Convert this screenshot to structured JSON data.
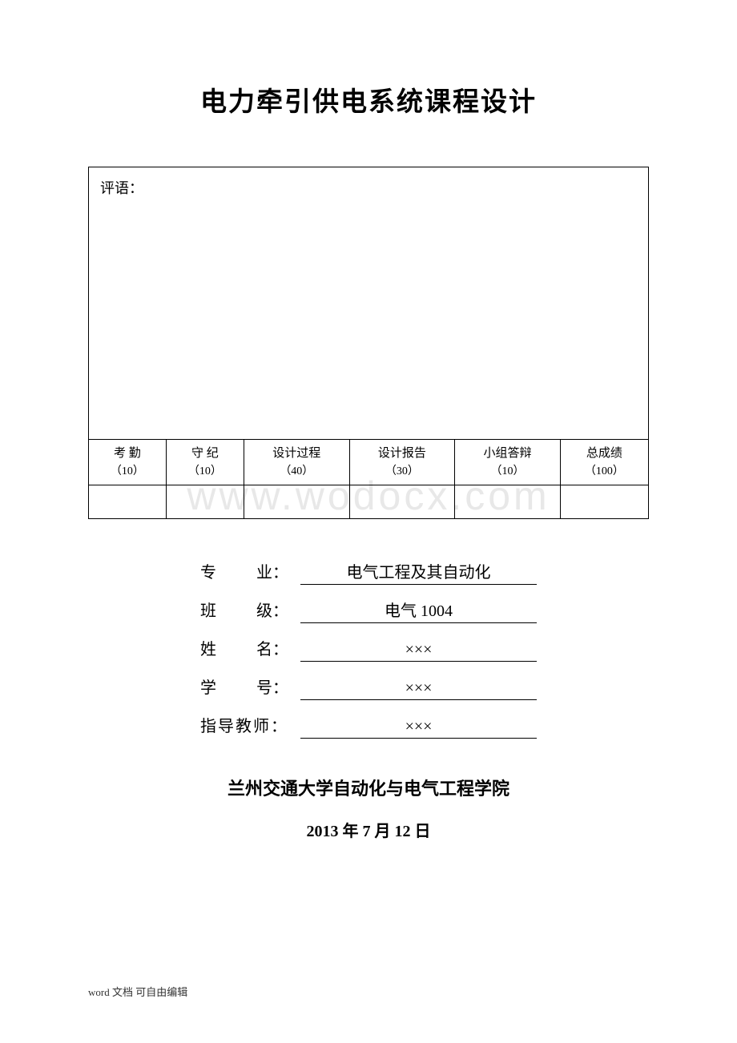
{
  "title": "电力牵引供电系统课程设计",
  "comment_label": "评语：",
  "score_columns": [
    {
      "main": "考 勤",
      "sub": "（10）"
    },
    {
      "main": "守 纪",
      "sub": "（10）"
    },
    {
      "main": "设计过程",
      "sub": "（40）"
    },
    {
      "main": "设计报告",
      "sub": "（30）"
    },
    {
      "main": "小组答辩",
      "sub": "（10）"
    },
    {
      "main": "总成绩",
      "sub": "（100）"
    }
  ],
  "info_fields": {
    "major": {
      "label": "专",
      "label2": "业",
      "value": "电气工程及其自动化"
    },
    "class": {
      "label": "班",
      "label2": "级",
      "value": "电气 1004"
    },
    "name": {
      "label": "姓",
      "label2": "名",
      "value": "×××"
    },
    "student_id": {
      "label": "学",
      "label2": "号",
      "value": "×××"
    },
    "advisor": {
      "label": "指导教师",
      "value": "×××"
    }
  },
  "institution": "兰州交通大学自动化与电气工程学院",
  "date": {
    "year": "2013",
    "month": "7",
    "day": "12",
    "y_suffix": " 年 ",
    "m_suffix": " 月  ",
    "d_suffix": " 日"
  },
  "footer": "word 文档  可自由编辑",
  "watermark": "www.wodocx.com",
  "colors": {
    "background": "#ffffff",
    "text": "#000000",
    "border": "#000000",
    "watermark": "#e8e8e8",
    "footer_text": "#333333"
  },
  "fonts": {
    "title_family": "SimHei",
    "body_family": "SimSun",
    "title_size_pt": 24,
    "body_size_pt": 15,
    "info_size_pt": 15
  }
}
